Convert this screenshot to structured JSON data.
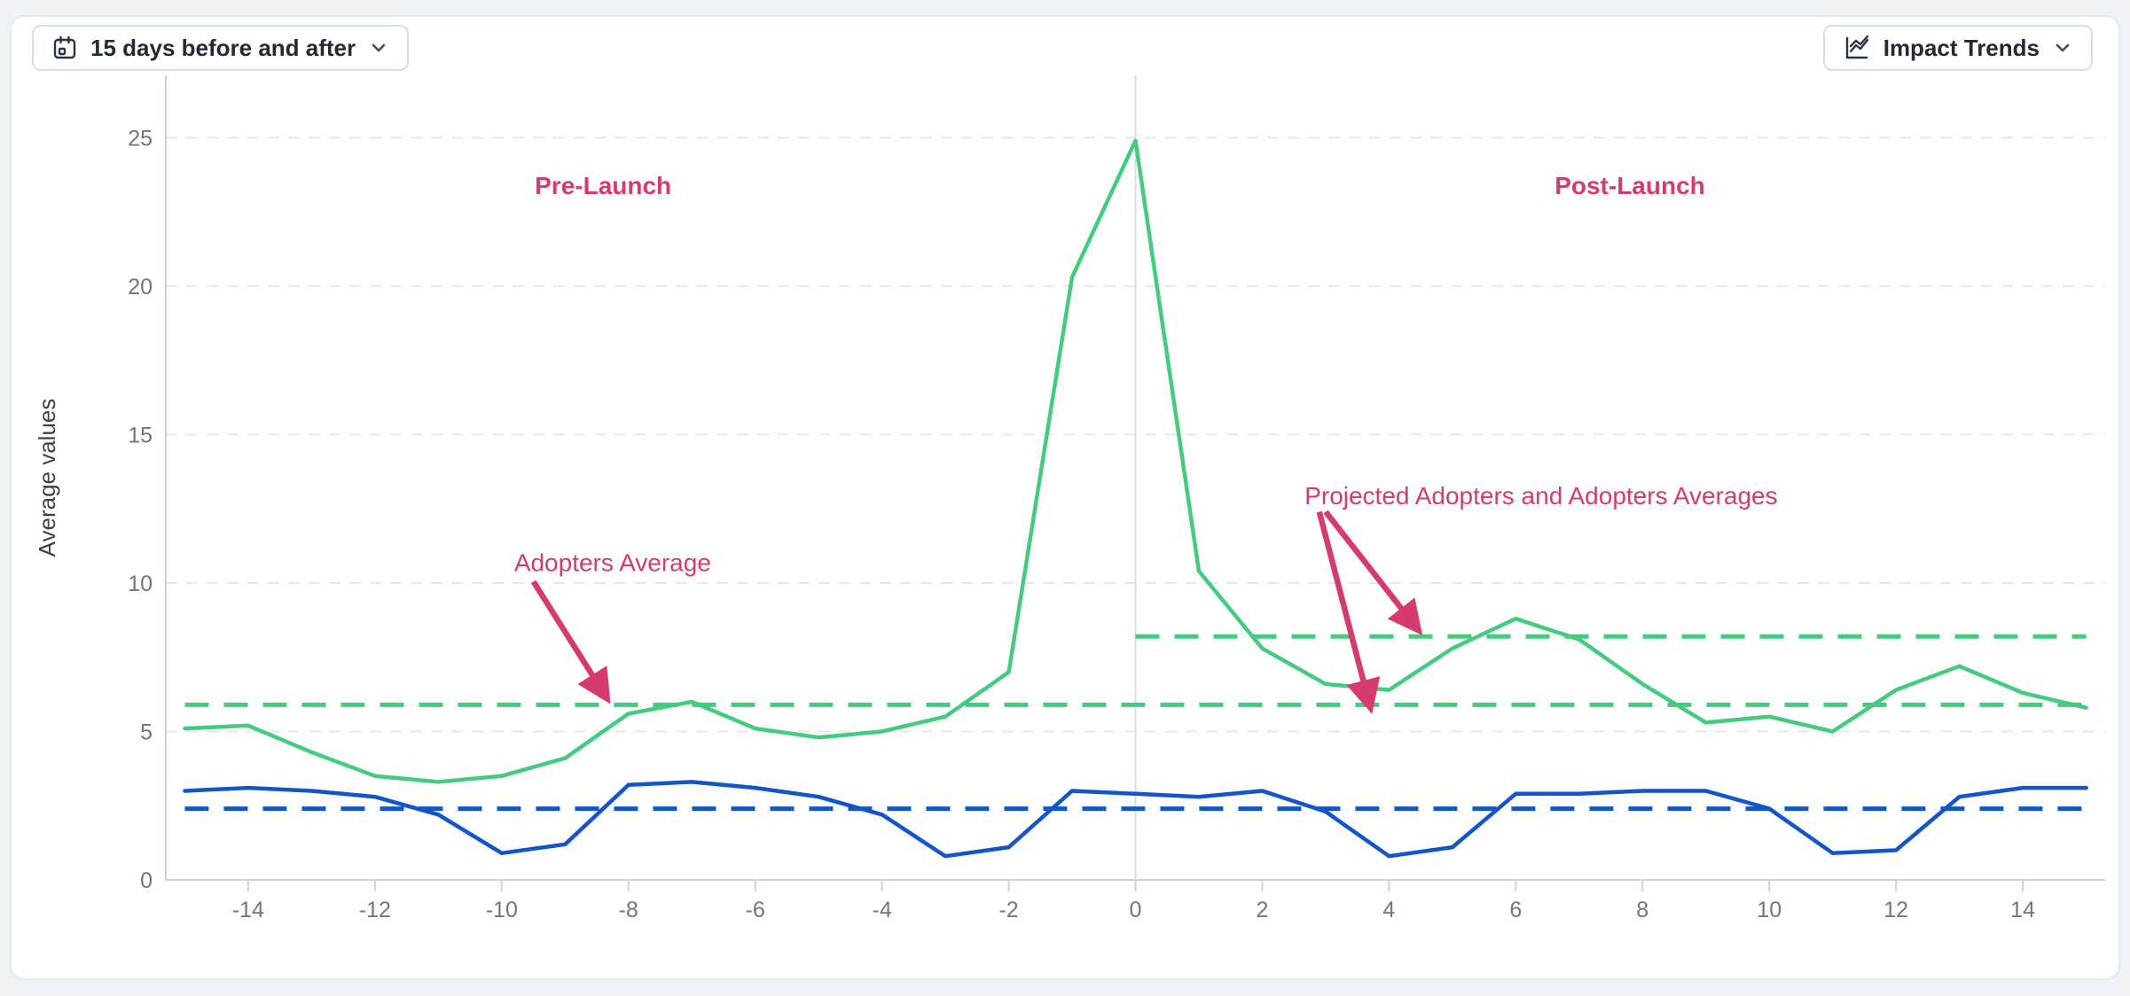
{
  "toolbar": {
    "date_range_button": {
      "label": "15 days before and after",
      "icon": "calendar",
      "chevron_icon": "chevron-down"
    },
    "chart_type_button": {
      "label": "Impact Trends",
      "icon": "line-chart",
      "chevron_icon": "chevron-down"
    }
  },
  "chart_data": {
    "type": "line",
    "title": "",
    "xlabel": "",
    "ylabel": "Average values",
    "xlim": [
      -15.3,
      15.3
    ],
    "ylim": [
      0,
      27.1
    ],
    "grid": true,
    "legend": "none",
    "x_tick_labels": [
      -14,
      -12,
      -10,
      -8,
      -6,
      -4,
      -2,
      0,
      2,
      4,
      6,
      8,
      10,
      12,
      14
    ],
    "y_ticks": [
      0,
      5,
      10,
      15,
      20,
      25
    ],
    "launch_line_x": 0,
    "x": [
      -15,
      -14,
      -13,
      -12,
      -11,
      -10,
      -9,
      -8,
      -7,
      -6,
      -5,
      -4,
      -3,
      -2,
      -1,
      0,
      1,
      2,
      3,
      4,
      5,
      6,
      7,
      8,
      9,
      10,
      11,
      12,
      13,
      14,
      15
    ],
    "series": [
      {
        "key": "adopters",
        "color": "#44cb7e",
        "style": "solid",
        "values": [
          5.1,
          5.2,
          4.3,
          3.5,
          3.3,
          3.5,
          4.1,
          5.6,
          6.0,
          5.1,
          4.8,
          5.0,
          5.5,
          7.0,
          20.3,
          24.9,
          10.4,
          7.8,
          6.6,
          6.4,
          7.8,
          8.8,
          8.1,
          6.6,
          5.3,
          5.5,
          5.0,
          6.4,
          7.2,
          6.3,
          5.8
        ]
      },
      {
        "key": "non_adopters",
        "color": "#1254c9",
        "style": "solid",
        "values": [
          3.0,
          3.1,
          3.0,
          2.8,
          2.2,
          0.9,
          1.2,
          3.2,
          3.3,
          3.1,
          2.8,
          2.2,
          0.8,
          1.1,
          3.0,
          2.9,
          2.8,
          3.0,
          2.3,
          0.8,
          1.1,
          2.9,
          2.9,
          3.0,
          3.0,
          2.4,
          0.9,
          1.0,
          2.8,
          3.1,
          3.1
        ]
      }
    ],
    "reference_lines": [
      {
        "key": "adopters_average",
        "value": 5.9,
        "color": "#44cb7e",
        "style": "dashed",
        "x_start": -15,
        "x_end": 15
      },
      {
        "key": "projected_adopters_average",
        "value": 8.2,
        "color": "#44cb7e",
        "style": "dashed",
        "x_start": 0,
        "x_end": 15
      },
      {
        "key": "comparison_average",
        "value": 2.4,
        "color": "#1254c9",
        "style": "dashed",
        "x_start": -15,
        "x_end": 15
      }
    ],
    "annotation_color": "#d53a70",
    "annotations": [
      {
        "id": "pre-launch-label",
        "text": "Pre-Launch",
        "x": -8.4,
        "y": 23.4,
        "bold": true,
        "arrows": []
      },
      {
        "id": "post-launch-label",
        "text": "Post-Launch",
        "x": 7.8,
        "y": 23.4,
        "bold": true,
        "arrows": []
      },
      {
        "id": "adopters-average-label",
        "text": "Adopters Average",
        "x": -8.25,
        "y": 10.7,
        "bold": false,
        "arrows": [
          {
            "from": [
              -9.5,
              10.05
            ],
            "to": [
              -8.35,
              6.15
            ]
          }
        ]
      },
      {
        "id": "projected-adopters-label",
        "text": "Projected Adopters and Adopters Averages",
        "x": 6.4,
        "y": 12.95,
        "bold": false,
        "arrows": [
          {
            "from": [
              2.9,
              12.4
            ],
            "to": [
              3.7,
              5.85
            ]
          },
          {
            "from": [
              3.0,
              12.4
            ],
            "to": [
              4.45,
              8.45
            ]
          }
        ]
      }
    ],
    "axis_color": "#c9d3e1",
    "grid_color": "#e4e7ed",
    "launch_line_color": "#d9dde4",
    "tick_label_color": "#6f7681",
    "axis_title_color": "#3a414d"
  }
}
